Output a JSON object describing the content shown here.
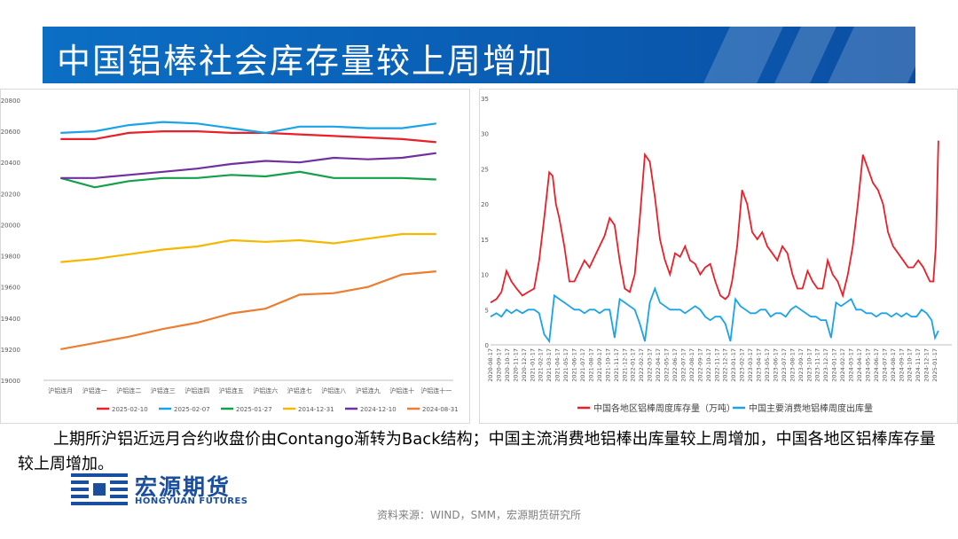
{
  "title": "中国铝棒社会库存量较上周增加",
  "colors": {
    "title_bar": "#0b64bd",
    "logo": "#1a4fa0"
  },
  "body_text": "上期所沪铝近远月合约收盘价由Contango渐转为Back结构；中国主流消费地铝棒出库量较上周增加，中国各地区铝棒库存量较上周增加。",
  "logo": {
    "cn": "宏源期货",
    "en": "HONGYUAN FUTURES"
  },
  "source": "资料来源：WIND，SMM，宏源期货研究所",
  "chart_data": [
    {
      "type": "line",
      "categories": [
        "沪铝连月",
        "沪铝连一",
        "沪铝连二",
        "沪铝连三",
        "沪铝连四",
        "沪铝连五",
        "沪铝连六",
        "沪铝连七",
        "沪铝连八",
        "沪铝连九",
        "沪铝连十",
        "沪铝连十一"
      ],
      "ylim": [
        19000,
        20800
      ],
      "yticks": [
        19000,
        19200,
        19400,
        19600,
        19800,
        20000,
        20200,
        20400,
        20600,
        20800
      ],
      "legend_position": "bottom",
      "grid": false,
      "series": [
        {
          "name": "2025-02-10",
          "color": "#e8202a",
          "values": [
            20550,
            20550,
            20590,
            20600,
            20600,
            20590,
            20590,
            20580,
            20570,
            20560,
            20550,
            20530
          ]
        },
        {
          "name": "2025-02-07",
          "color": "#1aa3e8",
          "values": [
            20590,
            20600,
            20640,
            20660,
            20650,
            20620,
            20590,
            20630,
            20630,
            20620,
            20620,
            20650
          ]
        },
        {
          "name": "2025-01-27",
          "color": "#13a04a",
          "values": [
            20300,
            20240,
            20280,
            20300,
            20300,
            20320,
            20310,
            20340,
            20300,
            20300,
            20300,
            20290
          ]
        },
        {
          "name": "2014-12-31",
          "color": "#f5b800",
          "values": [
            19760,
            19780,
            19810,
            19840,
            19860,
            19900,
            19890,
            19900,
            19880,
            19910,
            19940,
            19940
          ]
        },
        {
          "name": "2024-12-10",
          "color": "#7030a0",
          "values": [
            20300,
            20300,
            20320,
            20340,
            20360,
            20390,
            20410,
            20400,
            20430,
            20420,
            20430,
            20460
          ]
        },
        {
          "name": "2024-08-31",
          "color": "#ed7d31",
          "values": [
            19200,
            19240,
            19280,
            19330,
            19370,
            19430,
            19460,
            19550,
            19560,
            19600,
            19680,
            19700
          ]
        }
      ]
    },
    {
      "type": "line",
      "ylim": [
        0,
        35
      ],
      "yticks": [
        0,
        5,
        10,
        15,
        20,
        25,
        30,
        35
      ],
      "x_tick_labels": [
        "2020-08-17",
        "2020-09-17",
        "2020-10-17",
        "2020-11-17",
        "2020-12-17",
        "2021-01-17",
        "2021-02-17",
        "2021-03-17",
        "2021-04-17",
        "2021-05-17",
        "2021-06-17",
        "2021-07-17",
        "2021-08-17",
        "2021-09-17",
        "2021-10-17",
        "2021-11-17",
        "2021-12-17",
        "2022-01-17",
        "2022-02-17",
        "2022-03-17",
        "2022-04-17",
        "2022-05-17",
        "2022-06-17",
        "2022-07-17",
        "2022-08-17",
        "2022-09-17",
        "2022-10-17",
        "2022-11-17",
        "2022-12-17",
        "2023-01-17",
        "2023-02-17",
        "2023-03-17",
        "2023-04-17",
        "2023-05-17",
        "2023-06-17",
        "2023-07-17",
        "2023-08-17",
        "2023-09-17",
        "2023-10-17",
        "2023-11-17",
        "2023-12-17",
        "2024-01-17",
        "2024-02-17",
        "2024-03-17",
        "2024-04-17",
        "2024-05-17",
        "2024-06-17",
        "2024-07-17",
        "2024-08-17",
        "2024-09-17",
        "2024-10-17",
        "2024-11-17",
        "2024-12-17",
        "2025-01-17"
      ],
      "legend_position": "bottom",
      "grid": false,
      "x_range": [
        0,
        55
      ],
      "series": [
        {
          "name": "中国各地区铝棒周度库存量（万吨）",
          "color": "#e8202a",
          "x": [
            0,
            0.7,
            1.3,
            1.9,
            2.5,
            3.1,
            3.8,
            4.5,
            5.2,
            5.8,
            6.4,
            7.0,
            7.4,
            7.8,
            8.2,
            8.8,
            9.4,
            10.0,
            10.6,
            11.2,
            11.8,
            12.4,
            13.0,
            13.6,
            14.2,
            14.8,
            15.4,
            16.0,
            16.6,
            17.2,
            17.8,
            18.4,
            19.0,
            19.6,
            20.2,
            20.8,
            21.4,
            22.0,
            22.6,
            23.2,
            23.8,
            24.4,
            25.0,
            25.6,
            26.2,
            26.8,
            27.4,
            28.0,
            28.4,
            28.8,
            29.4,
            30.0,
            30.6,
            31.2,
            31.8,
            32.4,
            33.0,
            33.6,
            34.2,
            34.8,
            35.4,
            36.0,
            36.6,
            37.2,
            37.8,
            38.4,
            39.0,
            39.6,
            40.2,
            40.8,
            41.4,
            42.0,
            42.6,
            43.2,
            43.8,
            44.4,
            45.0,
            45.6,
            46.2,
            46.8,
            47.4,
            48.0,
            48.6,
            49.2,
            49.8,
            50.4,
            51.0,
            51.6,
            52.0,
            52.4,
            52.8,
            53.1,
            53.4
          ],
          "values": [
            6,
            6.5,
            7.5,
            10.5,
            9,
            8,
            7,
            7.5,
            8,
            12,
            18,
            24.5,
            24,
            20,
            18,
            14,
            9,
            9,
            10.5,
            12,
            11,
            12.5,
            14,
            15.5,
            18,
            17,
            12,
            8,
            7.5,
            10,
            18,
            27,
            26,
            21,
            15,
            12,
            10,
            13,
            12.5,
            14,
            12,
            11.5,
            10,
            11,
            11.5,
            9,
            7,
            6.5,
            7,
            9,
            14,
            22,
            20,
            16,
            15,
            16,
            14,
            13,
            12,
            14,
            13,
            10,
            8,
            8,
            10.5,
            9,
            8,
            8,
            12,
            10,
            9,
            7,
            10,
            14,
            20,
            27,
            25,
            23,
            22,
            20,
            16,
            14,
            13,
            12,
            11,
            11,
            12,
            11,
            10,
            9,
            9,
            14,
            29
          ]
        },
        {
          "name": "中国主要消费地铝棒周度出库量",
          "color": "#1aa3e8",
          "x": [
            0,
            0.7,
            1.3,
            1.9,
            2.5,
            3.1,
            3.8,
            4.5,
            5.2,
            5.8,
            6.4,
            7.0,
            7.6,
            8.2,
            8.8,
            9.4,
            10.0,
            10.6,
            11.2,
            11.8,
            12.4,
            13.0,
            13.6,
            14.2,
            14.8,
            15.4,
            16.0,
            16.6,
            17.2,
            17.8,
            18.4,
            19.0,
            19.6,
            20.2,
            20.8,
            21.4,
            22.0,
            22.6,
            23.2,
            23.8,
            24.4,
            25.0,
            25.6,
            26.2,
            26.8,
            27.4,
            28.0,
            28.6,
            29.2,
            29.8,
            30.4,
            31.0,
            31.6,
            32.2,
            32.8,
            33.4,
            34.0,
            34.6,
            35.2,
            35.8,
            36.4,
            37.0,
            37.6,
            38.2,
            38.8,
            39.4,
            40.0,
            40.6,
            41.2,
            41.8,
            42.4,
            43.0,
            43.6,
            44.2,
            44.8,
            45.4,
            46.0,
            46.6,
            47.2,
            47.8,
            48.4,
            49.0,
            49.6,
            50.2,
            50.8,
            51.4,
            52.0,
            52.6,
            53.0,
            53.4
          ],
          "values": [
            4,
            4.5,
            4,
            5,
            4.5,
            5,
            4.5,
            5,
            5,
            4.5,
            1.5,
            0.5,
            7,
            6.5,
            6,
            5.5,
            5,
            5,
            4.5,
            5,
            5,
            4.5,
            5,
            5,
            1,
            6.5,
            6,
            5.5,
            5,
            3,
            0.5,
            6,
            8,
            6,
            5.5,
            5,
            5,
            5,
            4.5,
            5,
            5.5,
            5,
            4,
            3.5,
            4,
            4,
            3,
            0.5,
            6.5,
            5.5,
            5,
            4.5,
            4.5,
            5,
            5,
            4,
            4.5,
            4.5,
            4,
            5,
            5.5,
            5,
            4.5,
            4,
            4,
            3.5,
            3.5,
            1,
            6,
            5.5,
            6,
            6.5,
            5,
            5,
            4.5,
            4.5,
            4,
            4.5,
            4.5,
            4,
            4.5,
            4,
            4.5,
            4,
            4,
            5,
            4.5,
            3.5,
            1,
            2
          ]
        }
      ]
    }
  ]
}
